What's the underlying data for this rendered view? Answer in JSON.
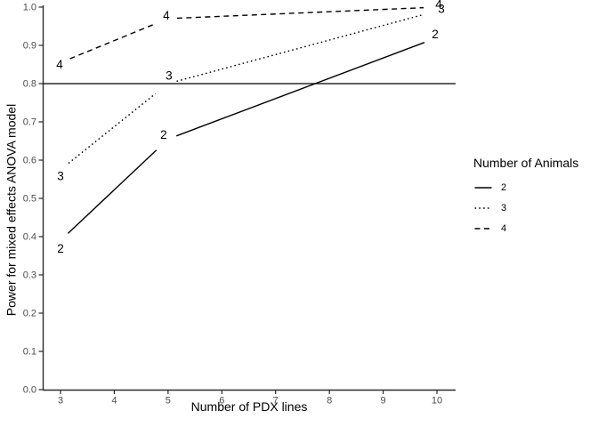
{
  "chart_data": {
    "type": "line",
    "title": "",
    "xlabel": "Number of PDX lines",
    "ylabel": "Power for mixed effects ANOVA model",
    "xlim": [
      2.67,
      10.35
    ],
    "ylim": [
      0.0,
      1.0
    ],
    "x_ticks": [
      "3",
      "4",
      "5",
      "6",
      "7",
      "8",
      "9",
      "10"
    ],
    "y_ticks": [
      "0.0",
      "0.1",
      "0.2",
      "0.3",
      "0.4",
      "0.5",
      "0.6",
      "0.7",
      "0.8",
      "0.9",
      "1.0"
    ],
    "grid": false,
    "reference_line_y": 0.8,
    "series": [
      {
        "name": "2",
        "linetype": "solid",
        "x": [
          3,
          5,
          10
        ],
        "y": [
          0.39,
          0.655,
          0.92
        ]
      },
      {
        "name": "3",
        "linetype": "dotted",
        "x": [
          3,
          5,
          10
        ],
        "y": [
          0.575,
          0.8,
          0.99
        ]
      },
      {
        "name": "4",
        "linetype": "dashed",
        "x": [
          3,
          5,
          10
        ],
        "y": [
          0.855,
          0.97,
          1.0
        ]
      }
    ],
    "legend": {
      "title": "Number of Animals",
      "position": "right",
      "items": [
        {
          "label": "2",
          "linetype": "solid"
        },
        {
          "label": "3",
          "linetype": "dotted"
        },
        {
          "label": "4",
          "linetype": "dashed"
        }
      ]
    },
    "colors": {
      "line": "#000000",
      "axis": "#2b2b2b",
      "tick_text": "#4d4d4d",
      "title_text": "#000000",
      "background": "#ffffff"
    }
  }
}
